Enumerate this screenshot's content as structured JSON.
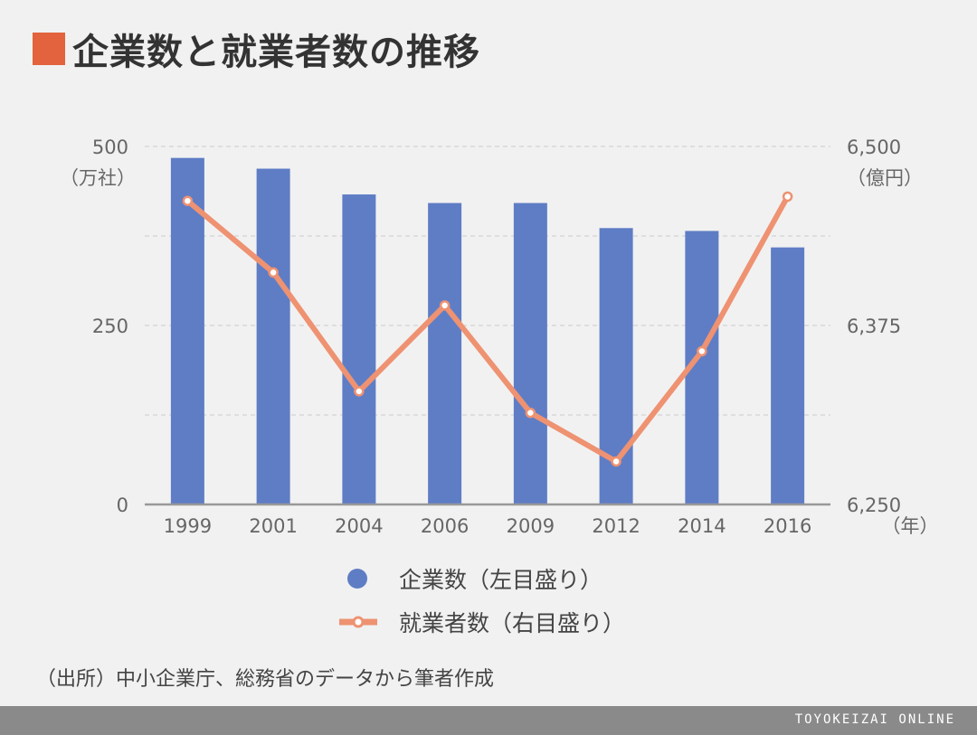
{
  "title": "企業数と就業者数の推移",
  "colors": {
    "accent": "#e2633d",
    "bar": "#5f7dc5",
    "line": "#ee9272",
    "grid": "#cccccc",
    "axis": "#999999"
  },
  "legend": [
    {
      "label": "企業数（左目盛り）",
      "icon": "circle-marker-icon"
    },
    {
      "label": "就業者数（右目盛り）",
      "icon": "line-marker-icon"
    }
  ],
  "source": "（出所）中小企業庁、総務省のデータから筆者作成",
  "brand": "TOYOKEIZAI ONLINE",
  "chart_data": {
    "type": "bar",
    "categories": [
      "1999",
      "2001",
      "2004",
      "2006",
      "2009",
      "2012",
      "2014",
      "2016"
    ],
    "series": [
      {
        "name": "企業数（左目盛り）",
        "type": "bar",
        "axis": "left",
        "values": [
          484,
          469,
          433,
          421,
          421,
          386,
          382,
          359
        ]
      },
      {
        "name": "就業者数（右目盛り）",
        "type": "line",
        "axis": "right",
        "values": [
          6462,
          6412,
          6329,
          6389,
          6314,
          6280,
          6357,
          6465
        ]
      }
    ],
    "y_left": {
      "min": 0,
      "max": 500,
      "ticks": [
        0,
        250,
        500
      ],
      "tick_labels": [
        "0",
        "250",
        "500"
      ],
      "unit": "（万社）"
    },
    "y_right": {
      "min": 6250,
      "max": 6500,
      "ticks": [
        6250,
        6375,
        6500
      ],
      "tick_labels": [
        "6,250",
        "6,375",
        "6,500"
      ],
      "unit": "（億円）"
    },
    "x_unit": "（年）",
    "grid": true,
    "legend_position": "bottom"
  }
}
